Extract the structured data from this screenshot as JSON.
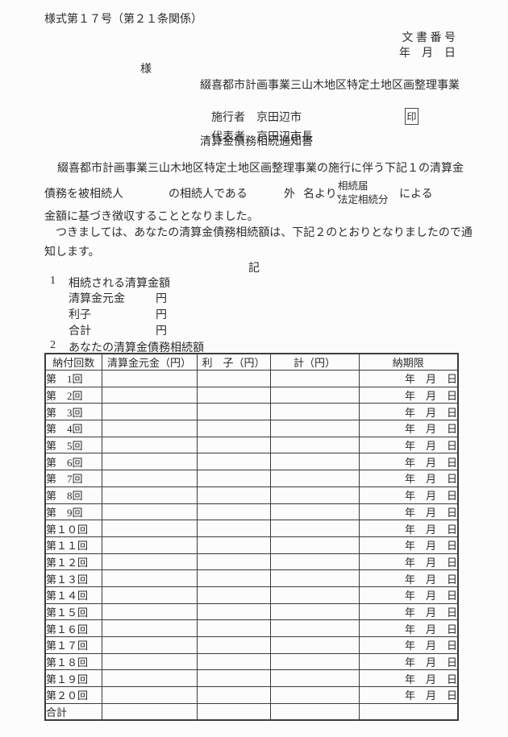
{
  "header": {
    "form_number": "様式第１７号（第２１条関係）",
    "doc_number": "文 書 番 号",
    "date_line": "年　月　日",
    "addressee_suffix": "様",
    "project_name": "綴喜都市計画事業三山木地区特定土地区画整理事業",
    "executor_label": "施行者",
    "executor_value": "京田辺市",
    "representative_label": "代表者",
    "representative_value": "京田辺市長",
    "seal": "印",
    "doc_title": "清算金債務相続通知書"
  },
  "body": {
    "para1_line1": "　綴喜都市計画事業三山木地区特定土地区画整理事業の施行に伴う下記１の清算金",
    "para1_line2_part1": "債務を被相続人",
    "para1_line2_part2": "の相続人である",
    "para1_line2_part3": "外",
    "para1_line2_part4": "名より、",
    "para1_line2_stacked_top": "相続届",
    "para1_line2_stacked_bottom": "法定相続分",
    "para1_line2_part5": "による",
    "para1_line3": "金額に基づき徴収することとなりました。",
    "para2_line1": "　つきましては、あなたの清算金債務相続額は、下記２のとおりとなりましたので通",
    "para2_line2": "知します。",
    "ki_marker": "記"
  },
  "section1": {
    "number": "1",
    "heading": "相続される清算金額",
    "items": [
      {
        "label": "清算金元金",
        "unit": "円"
      },
      {
        "label": "利子",
        "unit": "円"
      },
      {
        "label": "合計",
        "unit": "円"
      }
    ]
  },
  "section2": {
    "number": "2",
    "heading": "あなたの清算金債務相続額",
    "table": {
      "headers": [
        "納付回数",
        "清算金元金（円）",
        "利　子（円）",
        "計（円）",
        "納期限"
      ],
      "rows": [
        {
          "label": "第　1回",
          "principal": "",
          "interest": "",
          "total": "",
          "due": "年　月　日"
        },
        {
          "label": "第　2回",
          "principal": "",
          "interest": "",
          "total": "",
          "due": "年　月　日"
        },
        {
          "label": "第　3回",
          "principal": "",
          "interest": "",
          "total": "",
          "due": "年　月　日"
        },
        {
          "label": "第　4回",
          "principal": "",
          "interest": "",
          "total": "",
          "due": "年　月　日"
        },
        {
          "label": "第　5回",
          "principal": "",
          "interest": "",
          "total": "",
          "due": "年　月　日"
        },
        {
          "label": "第　6回",
          "principal": "",
          "interest": "",
          "total": "",
          "due": "年　月　日"
        },
        {
          "label": "第　7回",
          "principal": "",
          "interest": "",
          "total": "",
          "due": "年　月　日"
        },
        {
          "label": "第　8回",
          "principal": "",
          "interest": "",
          "total": "",
          "due": "年　月　日"
        },
        {
          "label": "第　9回",
          "principal": "",
          "interest": "",
          "total": "",
          "due": "年　月　日"
        },
        {
          "label": "第１０回",
          "principal": "",
          "interest": "",
          "total": "",
          "due": "年　月　日"
        },
        {
          "label": "第１１回",
          "principal": "",
          "interest": "",
          "total": "",
          "due": "年　月　日"
        },
        {
          "label": "第１２回",
          "principal": "",
          "interest": "",
          "total": "",
          "due": "年　月　日"
        },
        {
          "label": "第１３回",
          "principal": "",
          "interest": "",
          "total": "",
          "due": "年　月　日"
        },
        {
          "label": "第１４回",
          "principal": "",
          "interest": "",
          "total": "",
          "due": "年　月　日"
        },
        {
          "label": "第１５回",
          "principal": "",
          "interest": "",
          "total": "",
          "due": "年　月　日"
        },
        {
          "label": "第１６回",
          "principal": "",
          "interest": "",
          "total": "",
          "due": "年　月　日"
        },
        {
          "label": "第１７回",
          "principal": "",
          "interest": "",
          "total": "",
          "due": "年　月　日"
        },
        {
          "label": "第１８回",
          "principal": "",
          "interest": "",
          "total": "",
          "due": "年　月　日"
        },
        {
          "label": "第１９回",
          "principal": "",
          "interest": "",
          "total": "",
          "due": "年　月　日"
        },
        {
          "label": "第２０回",
          "principal": "",
          "interest": "",
          "total": "",
          "due": "年　月　日"
        },
        {
          "label": "合計",
          "principal": "",
          "interest": "",
          "total": "",
          "due": ""
        }
      ]
    }
  }
}
